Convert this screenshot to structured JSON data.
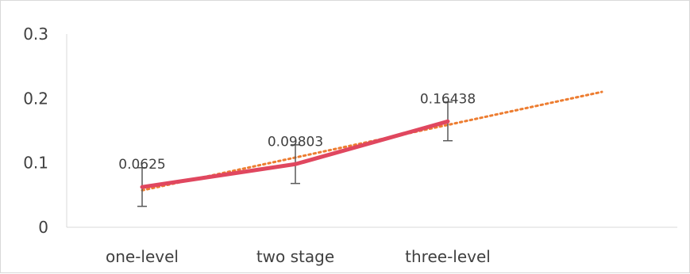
{
  "chart_data": {
    "type": "line",
    "categories": [
      "one-level",
      "two stage",
      "three-level"
    ],
    "series": [
      {
        "values": [
          0.0625,
          0.09803,
          0.16438
        ],
        "data_labels": [
          "0.0625",
          "0.09803",
          "0.16438"
        ],
        "error_bars": [
          0.03,
          0.03,
          0.03
        ],
        "color": "#e0475f"
      }
    ],
    "trendline": {
      "type": "linear",
      "forward_forecast_categories": 1,
      "color": "#ed7d31",
      "style": "dotted"
    },
    "y_ticks": [
      "0",
      "0.1",
      "0.2",
      "0.3"
    ],
    "ylim": [
      0,
      0.3
    ],
    "grid": false,
    "axis_color": "#d9d9d9",
    "text_color": "#404040",
    "error_bar_color": "#595959",
    "title": "",
    "xlabel": "",
    "ylabel": ""
  }
}
